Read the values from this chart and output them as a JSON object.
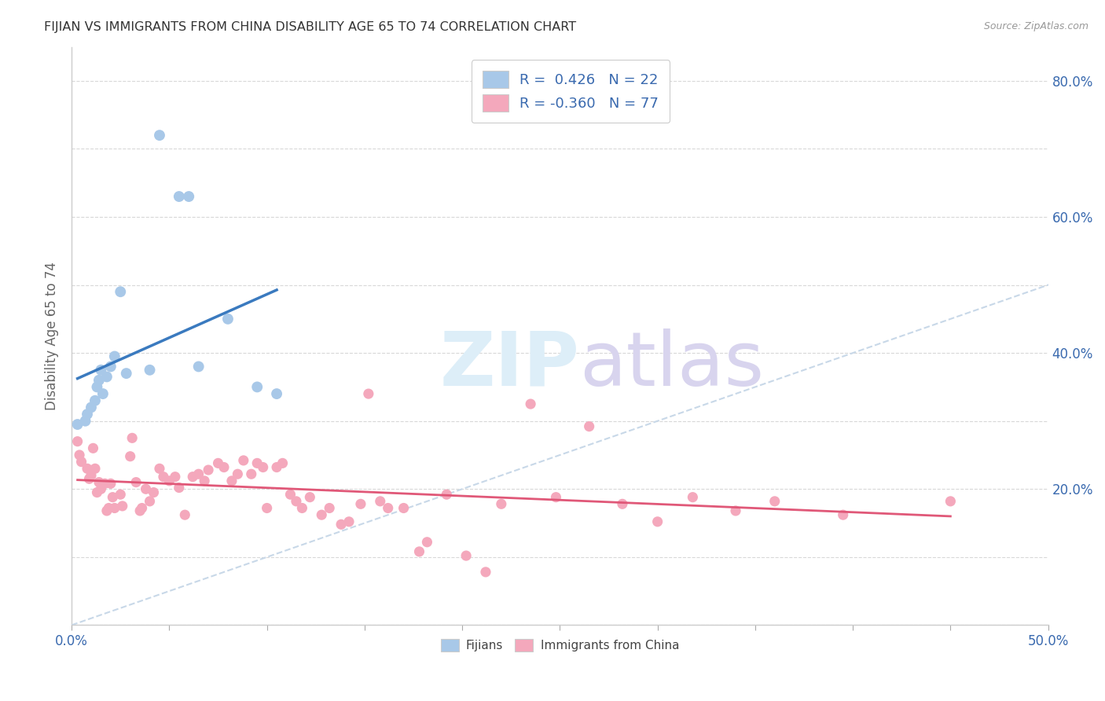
{
  "title": "FIJIAN VS IMMIGRANTS FROM CHINA DISABILITY AGE 65 TO 74 CORRELATION CHART",
  "source": "Source: ZipAtlas.com",
  "ylabel": "Disability Age 65 to 74",
  "xlim": [
    0.0,
    0.5
  ],
  "ylim": [
    0.0,
    0.85
  ],
  "x_ticks": [
    0.0,
    0.05,
    0.1,
    0.15,
    0.2,
    0.25,
    0.3,
    0.35,
    0.4,
    0.45,
    0.5
  ],
  "y_ticks": [
    0.0,
    0.1,
    0.2,
    0.3,
    0.4,
    0.5,
    0.6,
    0.7,
    0.8
  ],
  "y_ticks_labeled": [
    0.2,
    0.4,
    0.6,
    0.8
  ],
  "fijian_color": "#a8c8e8",
  "china_color": "#f4a8bc",
  "fijian_line_color": "#3a7abf",
  "china_line_color": "#e05878",
  "diagonal_color": "#c8d8e8",
  "legend_text_color": "#3a6aaf",
  "axis_label_color": "#3a6aaf",
  "R_fijian": "0.426",
  "N_fijian": 22,
  "R_china": "-0.360",
  "N_china": 77,
  "fijian_x": [
    0.003,
    0.007,
    0.008,
    0.01,
    0.012,
    0.013,
    0.014,
    0.015,
    0.016,
    0.018,
    0.02,
    0.022,
    0.025,
    0.028,
    0.04,
    0.045,
    0.055,
    0.06,
    0.065,
    0.08,
    0.095,
    0.105
  ],
  "fijian_y": [
    0.295,
    0.3,
    0.31,
    0.32,
    0.33,
    0.35,
    0.36,
    0.375,
    0.34,
    0.365,
    0.38,
    0.395,
    0.49,
    0.37,
    0.375,
    0.72,
    0.63,
    0.63,
    0.38,
    0.45,
    0.35,
    0.34
  ],
  "china_x": [
    0.003,
    0.004,
    0.005,
    0.008,
    0.009,
    0.01,
    0.011,
    0.012,
    0.013,
    0.014,
    0.015,
    0.017,
    0.018,
    0.019,
    0.02,
    0.021,
    0.022,
    0.025,
    0.026,
    0.03,
    0.031,
    0.033,
    0.035,
    0.036,
    0.038,
    0.04,
    0.042,
    0.045,
    0.047,
    0.05,
    0.053,
    0.055,
    0.058,
    0.062,
    0.065,
    0.068,
    0.07,
    0.075,
    0.078,
    0.082,
    0.085,
    0.088,
    0.092,
    0.095,
    0.098,
    0.1,
    0.105,
    0.108,
    0.112,
    0.115,
    0.118,
    0.122,
    0.128,
    0.132,
    0.138,
    0.142,
    0.148,
    0.152,
    0.158,
    0.162,
    0.17,
    0.178,
    0.182,
    0.192,
    0.202,
    0.212,
    0.22,
    0.235,
    0.248,
    0.265,
    0.282,
    0.3,
    0.318,
    0.34,
    0.36,
    0.395,
    0.45
  ],
  "china_y": [
    0.27,
    0.25,
    0.24,
    0.23,
    0.215,
    0.22,
    0.26,
    0.23,
    0.195,
    0.21,
    0.2,
    0.208,
    0.168,
    0.172,
    0.208,
    0.188,
    0.172,
    0.192,
    0.175,
    0.248,
    0.275,
    0.21,
    0.168,
    0.172,
    0.2,
    0.182,
    0.195,
    0.23,
    0.218,
    0.212,
    0.218,
    0.202,
    0.162,
    0.218,
    0.222,
    0.212,
    0.228,
    0.238,
    0.232,
    0.212,
    0.222,
    0.242,
    0.222,
    0.238,
    0.232,
    0.172,
    0.232,
    0.238,
    0.192,
    0.182,
    0.172,
    0.188,
    0.162,
    0.172,
    0.148,
    0.152,
    0.178,
    0.34,
    0.182,
    0.172,
    0.172,
    0.108,
    0.122,
    0.192,
    0.102,
    0.078,
    0.178,
    0.325,
    0.188,
    0.292,
    0.178,
    0.152,
    0.188,
    0.168,
    0.182,
    0.162,
    0.182
  ]
}
